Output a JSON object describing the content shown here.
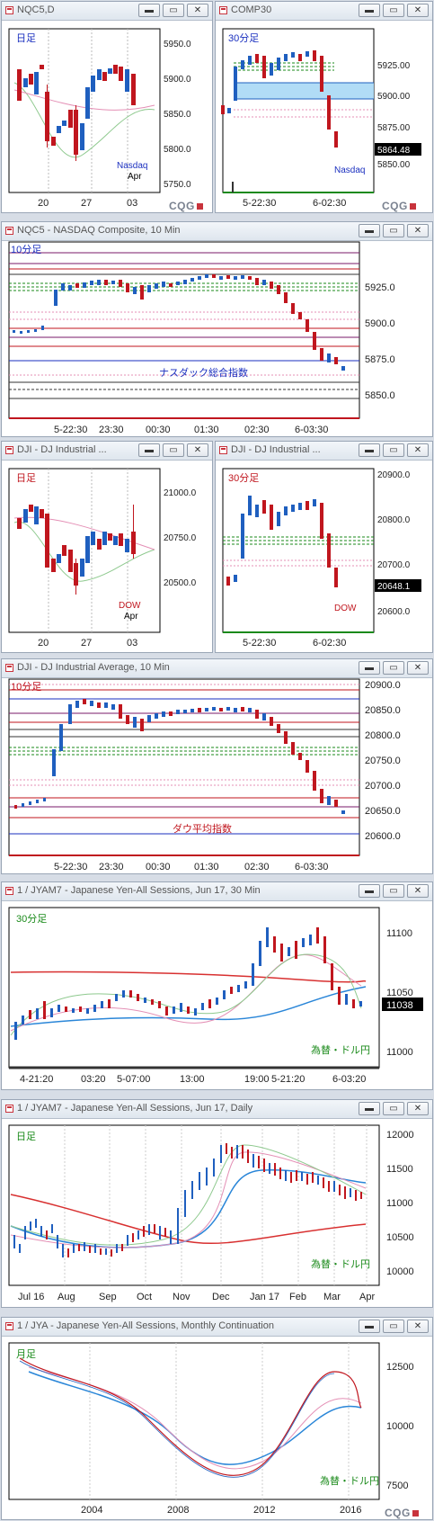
{
  "windows": {
    "w1": {
      "title": "NQC5,D",
      "period": "日足",
      "axis": [
        "5950.0",
        "5900.0",
        "5850.0",
        "5800.0",
        "5750.0"
      ],
      "xticks": [
        "20",
        "27",
        "03"
      ],
      "market": "Nasdaq",
      "month": "Apr"
    },
    "w2": {
      "title": "COMP30",
      "period": "30分足",
      "axis": [
        "5925.00",
        "5900.00",
        "5875.00",
        "5850.00"
      ],
      "last": "5864.48",
      "xticks": [
        "5-22:30",
        "6-02:30"
      ],
      "market": "Nasdaq"
    },
    "w3": {
      "title": "NQC5 - NASDAQ Composite, 10 Min",
      "period": "10分足",
      "axis": [
        "5925.0",
        "5900.0",
        "5875.0",
        "5850.0"
      ],
      "xticks": [
        "5-22:30",
        "23:30",
        "00:30",
        "01:30",
        "02:30",
        "6-03:30"
      ],
      "label": "ナスダック総合指数"
    },
    "w4": {
      "title": "DJI - DJ Industrial ...",
      "period": "日足",
      "axis": [
        "21000.0",
        "20750.0",
        "20500.0"
      ],
      "xticks": [
        "20",
        "27",
        "03"
      ],
      "market": "DOW",
      "month": "Apr"
    },
    "w5": {
      "title": "DJI - DJ Industrial ...",
      "period": "30分足",
      "axis": [
        "20900.0",
        "20800.0",
        "20700.0",
        "20600.0"
      ],
      "last": "20648.1",
      "xticks": [
        "5-22:30",
        "6-02:30"
      ],
      "market": "DOW"
    },
    "w6": {
      "title": "DJI - DJ Industrial Average, 10 Min",
      "period": "10分足",
      "axis": [
        "20900.0",
        "20850.0",
        "20800.0",
        "20750.0",
        "20700.0",
        "20650.0",
        "20600.0"
      ],
      "xticks": [
        "5-22:30",
        "23:30",
        "00:30",
        "01:30",
        "02:30",
        "6-03:30"
      ],
      "label": "ダウ平均指数"
    },
    "w7": {
      "title": "1 / JYAM7 - Japanese Yen-All Sessions, Jun 17, 30 Min",
      "period": "30分足",
      "axis": [
        "11100",
        "11050",
        "11000"
      ],
      "last": "11038",
      "xticks": [
        "4-21:20",
        "03:20",
        "5-07:00",
        "13:00",
        "19:00",
        "5-21:20",
        "6-03:20"
      ],
      "label": "為替・ドル円"
    },
    "w8": {
      "title": "1 / JYAM7 - Japanese Yen-All Sessions, Jun 17, Daily",
      "period": "日足",
      "axis": [
        "12000",
        "11500",
        "11000",
        "10500",
        "10000"
      ],
      "xticks": [
        "Jul 16",
        "Aug",
        "Sep",
        "Oct",
        "Nov",
        "Dec",
        "Jan 17",
        "Feb",
        "Mar",
        "Apr"
      ],
      "label": "為替・ドル円"
    },
    "w9": {
      "title": "1 / JYA - Japanese Yen-All Sessions, Monthly Continuation",
      "period": "月足",
      "axis": [
        "12500",
        "10000",
        "7500"
      ],
      "xticks": [
        "2004",
        "2008",
        "2012",
        "2016"
      ],
      "label": "為替・ドル円"
    }
  },
  "brand": "CQG",
  "buttons": {
    "min": "▬",
    "restore": "▭",
    "close": "✕"
  },
  "colors": {
    "up": "#1f5fbf",
    "down": "#c0161e",
    "period_blue": "#1a2fbf",
    "period_red": "#c0161e",
    "period_green": "#1a8a1a"
  }
}
